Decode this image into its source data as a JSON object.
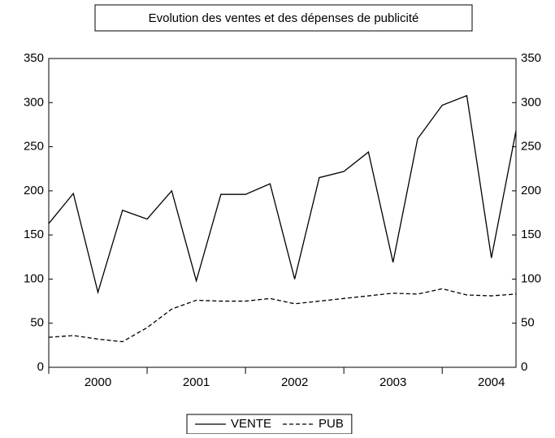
{
  "chart_data": {
    "type": "line",
    "title": "Evolution des ventes et des dépenses de publicité",
    "categories": [
      "2000",
      null,
      null,
      null,
      "2001",
      null,
      null,
      null,
      "2002",
      null,
      null,
      null,
      "2003",
      null,
      null,
      null,
      "2004",
      null,
      null,
      null
    ],
    "series": [
      {
        "name": "VENTE",
        "color": "#000000",
        "style": "solid",
        "values": [
          163,
          197,
          85,
          178,
          168,
          200,
          98,
          196,
          196,
          208,
          100,
          215,
          222,
          244,
          119,
          259,
          297,
          308,
          124,
          268
        ]
      },
      {
        "name": "PUB",
        "color": "#000000",
        "style": "dashed",
        "values": [
          34,
          36,
          32,
          29,
          45,
          66,
          76,
          75,
          75,
          78,
          72,
          75,
          78,
          81,
          84,
          83,
          89,
          82,
          81,
          83
        ]
      }
    ],
    "ylim": [
      0,
      350
    ],
    "yticks": [
      0,
      50,
      100,
      150,
      200,
      250,
      300,
      350
    ],
    "y2lim": [
      0,
      350
    ],
    "y2ticks": [
      0,
      50,
      100,
      150,
      200,
      250,
      300,
      350
    ],
    "grid": false
  }
}
